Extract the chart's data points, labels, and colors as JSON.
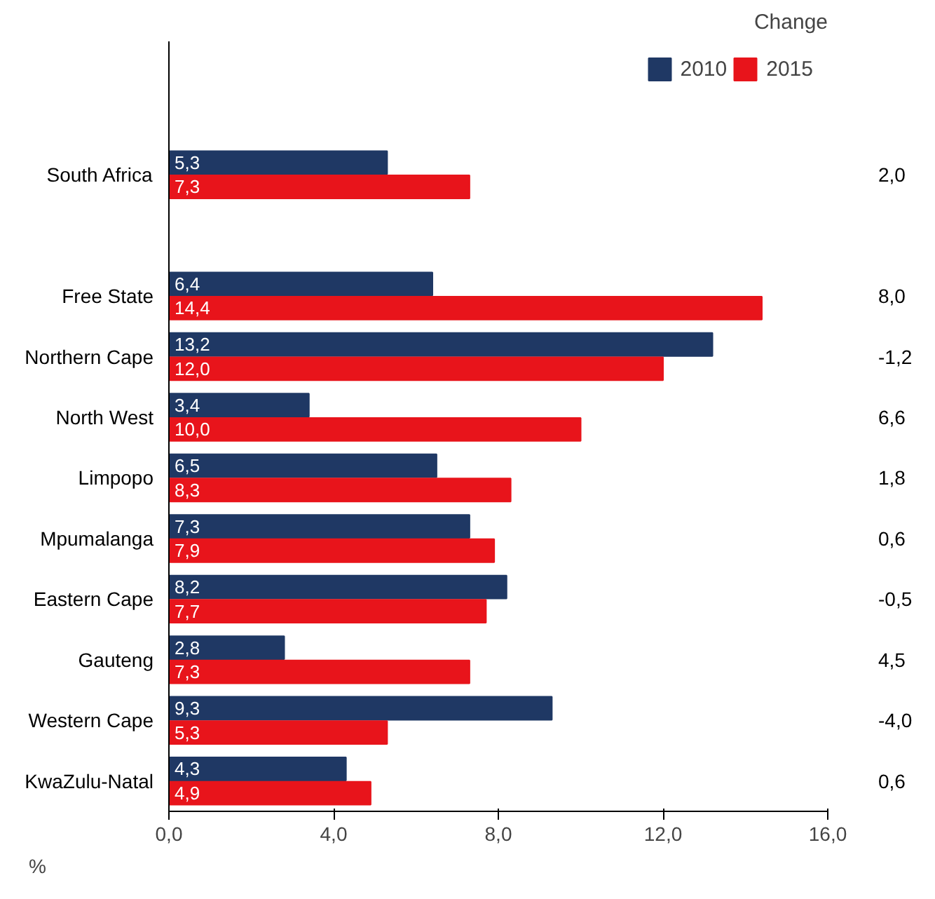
{
  "chart_data": {
    "type": "bar",
    "orientation": "horizontal",
    "xlabel": "%",
    "categories": [
      "South Africa",
      null,
      "Free State",
      "Northern Cape",
      "North West",
      "Limpopo",
      "Mpumalanga",
      "Eastern Cape",
      "Gauteng",
      "Western Cape",
      "KwaZulu-Natal"
    ],
    "series": [
      {
        "name": "2010",
        "color": "#1f3864",
        "values": [
          5.3,
          null,
          6.4,
          13.2,
          3.4,
          6.5,
          7.3,
          8.2,
          2.8,
          9.3,
          4.3
        ],
        "value_labels": [
          "5,3",
          null,
          "6,4",
          "13,2",
          "3,4",
          "6,5",
          "7,3",
          "8,2",
          "2,8",
          "9,3",
          "4,3"
        ]
      },
      {
        "name": "2015",
        "color": "#e8141b",
        "values": [
          7.3,
          null,
          14.4,
          12.0,
          10.0,
          8.3,
          7.9,
          7.7,
          7.3,
          5.3,
          4.9
        ],
        "value_labels": [
          "7,3",
          null,
          "14,4",
          "12,0",
          "10,0",
          "8,3",
          "7,9",
          "7,7",
          "7,3",
          "5,3",
          "4,9"
        ]
      }
    ],
    "xlim": [
      0,
      16
    ],
    "xticks": [
      {
        "value": 0,
        "label": "0,0"
      },
      {
        "value": 4,
        "label": "4,0"
      },
      {
        "value": 8,
        "label": "8,0"
      },
      {
        "value": 12,
        "label": "12,0"
      },
      {
        "value": 16,
        "label": "16,0"
      }
    ],
    "legend": "top right",
    "annotations": [
      "Change",
      "2,0",
      "8,0",
      "-1,2",
      "6,6",
      "1,8",
      "0,6",
      "-0,5",
      "4,5",
      "-4,0",
      "0,6"
    ]
  }
}
